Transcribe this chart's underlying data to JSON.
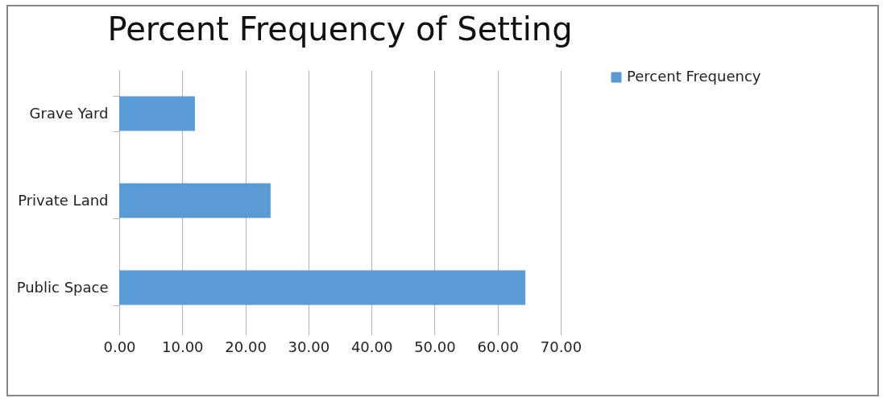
{
  "chart_data": {
    "type": "bar",
    "orientation": "horizontal",
    "title": "Percent Frequency of Setting",
    "categories": [
      "Grave Yard",
      "Private Land",
      "Public Space"
    ],
    "series": [
      {
        "name": "Percent Frequency",
        "color": "#5b9bd5",
        "values": [
          12.0,
          24.0,
          64.4
        ]
      }
    ],
    "xlim": [
      0,
      70
    ],
    "xticks": [
      {
        "value": 0,
        "label": "0.00"
      },
      {
        "value": 10,
        "label": "10.00"
      },
      {
        "value": 20,
        "label": "20.00"
      },
      {
        "value": 30,
        "label": "30.00"
      },
      {
        "value": 40,
        "label": "40.00"
      },
      {
        "value": 50,
        "label": "50.00"
      },
      {
        "value": 60,
        "label": "60.00"
      },
      {
        "value": 70,
        "label": "70.00"
      }
    ],
    "grid": "x",
    "legend": "right"
  }
}
